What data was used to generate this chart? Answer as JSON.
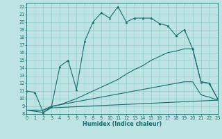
{
  "xlabel": "Humidex (Indice chaleur)",
  "bg_color": "#bde3e3",
  "grid_color": "#96cccc",
  "line_color": "#1a6b6b",
  "xlim": [
    0,
    23
  ],
  "ylim": [
    8,
    22.5
  ],
  "xticks": [
    0,
    1,
    2,
    3,
    4,
    5,
    6,
    7,
    8,
    9,
    10,
    11,
    12,
    13,
    14,
    15,
    16,
    17,
    18,
    19,
    20,
    21,
    22,
    23
  ],
  "yticks": [
    8,
    9,
    10,
    11,
    12,
    13,
    14,
    15,
    16,
    17,
    18,
    19,
    20,
    21,
    22
  ],
  "curve1_x": [
    0,
    1,
    2,
    3,
    4,
    5,
    6,
    7,
    8,
    9,
    10,
    11,
    12,
    13,
    14,
    15,
    16,
    17,
    18,
    19,
    20,
    21,
    22,
    23
  ],
  "curve1_y": [
    11.0,
    10.8,
    8.2,
    9.0,
    14.2,
    15.0,
    11.2,
    17.5,
    20.0,
    21.2,
    20.5,
    22.0,
    20.0,
    20.5,
    20.5,
    20.5,
    19.8,
    19.5,
    18.2,
    19.0,
    16.5,
    12.2,
    12.0,
    10.0
  ],
  "curve2_x": [
    0,
    2,
    3,
    4,
    5,
    6,
    7,
    8,
    9,
    10,
    11,
    12,
    13,
    14,
    15,
    16,
    17,
    18,
    19,
    20,
    21,
    22,
    23
  ],
  "curve2_y": [
    8.5,
    8.5,
    9.0,
    9.2,
    9.6,
    10.0,
    10.5,
    11.0,
    11.5,
    12.0,
    12.5,
    13.2,
    13.8,
    14.3,
    15.0,
    15.5,
    16.0,
    16.2,
    16.5,
    16.5,
    12.2,
    12.0,
    10.0
  ],
  "curve3_x": [
    0,
    2,
    3,
    4,
    5,
    6,
    7,
    8,
    9,
    10,
    11,
    12,
    13,
    14,
    15,
    16,
    17,
    18,
    19,
    20,
    21,
    22,
    23
  ],
  "curve3_y": [
    8.5,
    8.5,
    9.0,
    9.2,
    9.4,
    9.6,
    9.8,
    10.0,
    10.2,
    10.4,
    10.6,
    10.8,
    11.0,
    11.2,
    11.4,
    11.6,
    11.8,
    12.0,
    12.2,
    12.2,
    10.5,
    10.2,
    9.8
  ],
  "curve4_x": [
    0,
    2,
    3,
    23
  ],
  "curve4_y": [
    8.5,
    8.2,
    8.8,
    9.8
  ]
}
